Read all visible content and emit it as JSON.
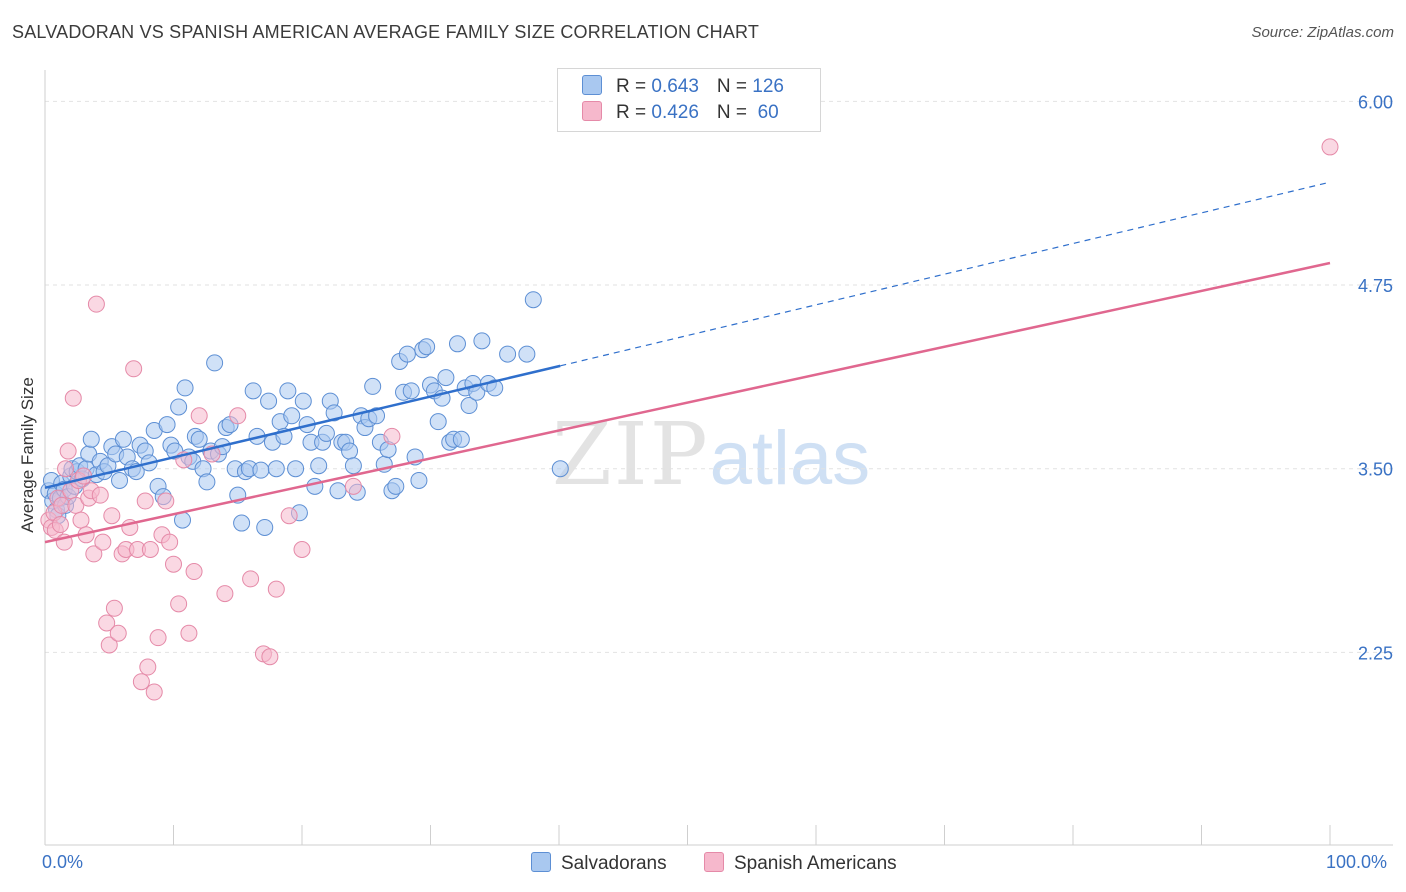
{
  "header": {
    "title": "SALVADORAN VS SPANISH AMERICAN AVERAGE FAMILY SIZE CORRELATION CHART",
    "source": "Source: ZipAtlas.com"
  },
  "legend_top": {
    "rows": [
      {
        "r_label": "R = ",
        "r_value": "0.643",
        "n_label": "N = ",
        "n_value": "126"
      },
      {
        "r_label": "R = ",
        "r_value": "0.426",
        "n_label": "N = ",
        "n_value": " 60"
      }
    ]
  },
  "legend_bottom": {
    "items": [
      "Salvadorans",
      "Spanish Americans"
    ]
  },
  "watermark": {
    "zip": "ZIP",
    "atlas": "atlas"
  },
  "colors": {
    "blue_fill": "#a9c8f0",
    "blue_stroke": "#5d8fd4",
    "blue_line": "#2f6fcc",
    "pink_fill": "#f6b8cc",
    "pink_stroke": "#e58aa8",
    "pink_line": "#e0678f",
    "tick_text": "#3a72c4",
    "grid": "#e2e2e2"
  },
  "chart_data": {
    "type": "scatter",
    "title": "SALVADORAN VS SPANISH AMERICAN AVERAGE FAMILY SIZE CORRELATION CHART",
    "xlabel": "",
    "ylabel": "Average Family Size",
    "xlim": [
      0,
      100
    ],
    "ylim": [
      1.0,
      6.2
    ],
    "x_tick_labels": [
      "0.0%",
      "100.0%"
    ],
    "y_ticks": [
      2.25,
      3.5,
      4.75,
      6.0
    ],
    "y_tick_labels": [
      "2.25",
      "3.50",
      "4.75",
      "6.00"
    ],
    "grid": true,
    "legend_placement": "top-center",
    "series": [
      {
        "name": "Salvadorans",
        "r": 0.643,
        "n": 126,
        "trend": {
          "x0": 0,
          "y0": 3.37,
          "x_solid_end": 40.1,
          "y_solid_end": 4.2,
          "x1": 100,
          "y1": 5.45
        },
        "points": [
          [
            0.3,
            3.35
          ],
          [
            0.5,
            3.42
          ],
          [
            0.6,
            3.28
          ],
          [
            0.8,
            3.33
          ],
          [
            0.9,
            3.22
          ],
          [
            1.0,
            3.18
          ],
          [
            1.2,
            3.3
          ],
          [
            1.3,
            3.4
          ],
          [
            1.5,
            3.36
          ],
          [
            1.6,
            3.25
          ],
          [
            1.8,
            3.31
          ],
          [
            2.0,
            3.45
          ],
          [
            2.1,
            3.5
          ],
          [
            2.3,
            3.38
          ],
          [
            2.5,
            3.48
          ],
          [
            2.7,
            3.52
          ],
          [
            2.9,
            3.43
          ],
          [
            3.2,
            3.5
          ],
          [
            3.4,
            3.6
          ],
          [
            3.6,
            3.7
          ],
          [
            4.0,
            3.46
          ],
          [
            4.3,
            3.55
          ],
          [
            4.6,
            3.48
          ],
          [
            4.9,
            3.52
          ],
          [
            5.2,
            3.65
          ],
          [
            5.5,
            3.6
          ],
          [
            5.8,
            3.42
          ],
          [
            6.1,
            3.7
          ],
          [
            6.4,
            3.58
          ],
          [
            6.8,
            3.5
          ],
          [
            7.1,
            3.48
          ],
          [
            7.4,
            3.66
          ],
          [
            7.8,
            3.62
          ],
          [
            8.1,
            3.54
          ],
          [
            8.5,
            3.76
          ],
          [
            8.8,
            3.38
          ],
          [
            9.2,
            3.31
          ],
          [
            9.5,
            3.8
          ],
          [
            9.8,
            3.66
          ],
          [
            10.1,
            3.62
          ],
          [
            10.4,
            3.92
          ],
          [
            10.7,
            3.15
          ],
          [
            10.9,
            4.05
          ],
          [
            11.2,
            3.58
          ],
          [
            11.5,
            3.55
          ],
          [
            11.7,
            3.72
          ],
          [
            12.0,
            3.7
          ],
          [
            12.3,
            3.5
          ],
          [
            12.6,
            3.41
          ],
          [
            12.9,
            3.62
          ],
          [
            13.2,
            4.22
          ],
          [
            13.5,
            3.6
          ],
          [
            13.8,
            3.65
          ],
          [
            14.1,
            3.78
          ],
          [
            14.4,
            3.8
          ],
          [
            14.8,
            3.5
          ],
          [
            15.0,
            3.32
          ],
          [
            15.3,
            3.13
          ],
          [
            15.6,
            3.48
          ],
          [
            15.9,
            3.5
          ],
          [
            16.2,
            4.03
          ],
          [
            16.5,
            3.72
          ],
          [
            16.8,
            3.49
          ],
          [
            17.1,
            3.1
          ],
          [
            17.4,
            3.96
          ],
          [
            17.7,
            3.68
          ],
          [
            18.0,
            3.5
          ],
          [
            18.3,
            3.82
          ],
          [
            18.6,
            3.72
          ],
          [
            18.9,
            4.03
          ],
          [
            19.2,
            3.86
          ],
          [
            19.5,
            3.5
          ],
          [
            19.8,
            3.2
          ],
          [
            20.1,
            3.96
          ],
          [
            20.4,
            3.8
          ],
          [
            20.7,
            3.68
          ],
          [
            21.0,
            3.38
          ],
          [
            21.3,
            3.52
          ],
          [
            21.6,
            3.68
          ],
          [
            21.9,
            3.74
          ],
          [
            22.2,
            3.96
          ],
          [
            22.5,
            3.88
          ],
          [
            22.8,
            3.35
          ],
          [
            23.1,
            3.68
          ],
          [
            23.4,
            3.68
          ],
          [
            23.7,
            3.62
          ],
          [
            24.0,
            3.52
          ],
          [
            24.3,
            3.34
          ],
          [
            24.6,
            3.86
          ],
          [
            24.9,
            3.78
          ],
          [
            25.2,
            3.84
          ],
          [
            25.5,
            4.06
          ],
          [
            25.8,
            3.86
          ],
          [
            26.1,
            3.68
          ],
          [
            26.4,
            3.53
          ],
          [
            26.7,
            3.63
          ],
          [
            27.0,
            3.35
          ],
          [
            27.3,
            3.38
          ],
          [
            27.6,
            4.23
          ],
          [
            27.9,
            4.02
          ],
          [
            28.2,
            4.28
          ],
          [
            28.5,
            4.03
          ],
          [
            28.8,
            3.58
          ],
          [
            29.1,
            3.42
          ],
          [
            29.4,
            4.31
          ],
          [
            29.7,
            4.33
          ],
          [
            30.0,
            4.07
          ],
          [
            30.3,
            4.03
          ],
          [
            30.6,
            3.82
          ],
          [
            30.9,
            3.98
          ],
          [
            31.2,
            4.12
          ],
          [
            31.5,
            3.68
          ],
          [
            31.8,
            3.7
          ],
          [
            32.1,
            4.35
          ],
          [
            32.4,
            3.7
          ],
          [
            32.7,
            4.05
          ],
          [
            33.0,
            3.93
          ],
          [
            33.3,
            4.08
          ],
          [
            33.6,
            4.02
          ],
          [
            34.0,
            4.37
          ],
          [
            34.5,
            4.08
          ],
          [
            35.0,
            4.05
          ],
          [
            36.0,
            4.28
          ],
          [
            37.5,
            4.28
          ],
          [
            38.0,
            4.65
          ],
          [
            40.1,
            3.5
          ]
        ]
      },
      {
        "name": "Spanish Americans",
        "r": 0.426,
        "n": 60,
        "trend": {
          "x0": 0,
          "y0": 3.0,
          "x1": 100,
          "y1": 4.9
        },
        "points": [
          [
            0.3,
            3.15
          ],
          [
            0.5,
            3.1
          ],
          [
            0.7,
            3.2
          ],
          [
            0.8,
            3.08
          ],
          [
            1.0,
            3.3
          ],
          [
            1.2,
            3.12
          ],
          [
            1.3,
            3.25
          ],
          [
            1.5,
            3.0
          ],
          [
            1.6,
            3.5
          ],
          [
            1.8,
            3.62
          ],
          [
            2.0,
            3.35
          ],
          [
            2.2,
            3.98
          ],
          [
            2.4,
            3.25
          ],
          [
            2.6,
            3.42
          ],
          [
            2.8,
            3.15
          ],
          [
            3.0,
            3.45
          ],
          [
            3.2,
            3.05
          ],
          [
            3.4,
            3.3
          ],
          [
            3.6,
            3.35
          ],
          [
            3.8,
            2.92
          ],
          [
            4.0,
            4.62
          ],
          [
            4.3,
            3.32
          ],
          [
            4.5,
            3.0
          ],
          [
            4.8,
            2.45
          ],
          [
            5.0,
            2.3
          ],
          [
            5.2,
            3.18
          ],
          [
            5.4,
            2.55
          ],
          [
            5.7,
            2.38
          ],
          [
            6.0,
            2.92
          ],
          [
            6.3,
            2.95
          ],
          [
            6.6,
            3.1
          ],
          [
            6.9,
            4.18
          ],
          [
            7.2,
            2.95
          ],
          [
            7.5,
            2.05
          ],
          [
            7.8,
            3.28
          ],
          [
            8.0,
            2.15
          ],
          [
            8.2,
            2.95
          ],
          [
            8.5,
            1.98
          ],
          [
            8.8,
            2.35
          ],
          [
            9.1,
            3.05
          ],
          [
            9.4,
            3.28
          ],
          [
            9.7,
            3.0
          ],
          [
            10.0,
            2.85
          ],
          [
            10.4,
            2.58
          ],
          [
            10.8,
            3.56
          ],
          [
            11.2,
            2.38
          ],
          [
            11.6,
            2.8
          ],
          [
            12.0,
            3.86
          ],
          [
            13.0,
            3.6
          ],
          [
            14.0,
            2.65
          ],
          [
            15.0,
            3.86
          ],
          [
            16.0,
            2.75
          ],
          [
            17.0,
            2.24
          ],
          [
            17.5,
            2.22
          ],
          [
            18.0,
            2.68
          ],
          [
            19.0,
            3.18
          ],
          [
            20.0,
            2.95
          ],
          [
            24.0,
            3.38
          ],
          [
            27.0,
            3.72
          ],
          [
            100.0,
            5.69
          ]
        ]
      }
    ]
  }
}
